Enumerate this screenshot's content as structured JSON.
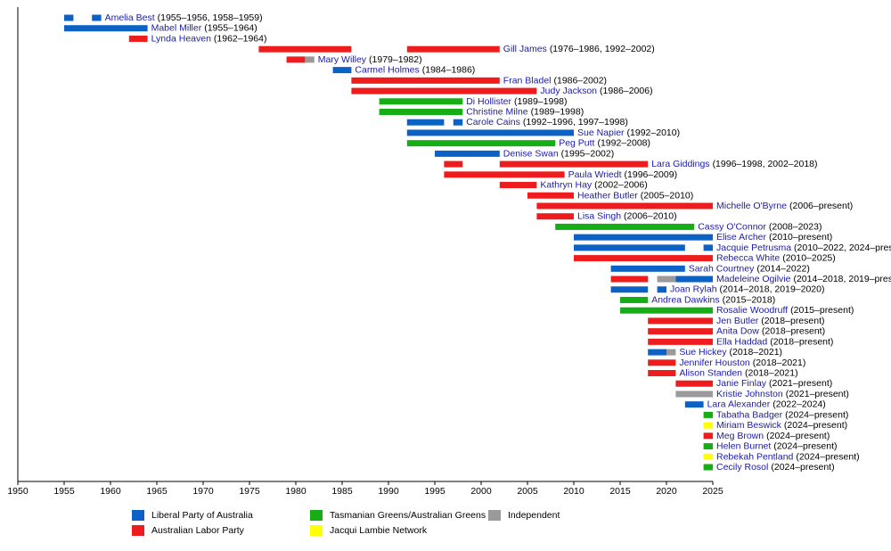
{
  "chart_data": {
    "type": "timeline",
    "xlim": [
      1950,
      2025
    ],
    "xticks": [
      1950,
      1955,
      1960,
      1965,
      1970,
      1975,
      1980,
      1985,
      1990,
      1995,
      2000,
      2005,
      2010,
      2015,
      2020,
      2025
    ],
    "parties": [
      {
        "name": "Liberal Party of Australia",
        "color": "#0b62c4"
      },
      {
        "name": "Australian Labor Party",
        "color": "#ee1c1c"
      },
      {
        "name": "Tasmanian Greens/Australian Greens",
        "color": "#17ad17"
      },
      {
        "name": "Jacqui Lambie Network",
        "color": "#ffff00"
      },
      {
        "name": "Independent",
        "color": "#9a9a9a"
      }
    ],
    "rows": [
      {
        "name": "Amelia Best",
        "span": "(1955–1956, 1958–1959)",
        "segments": [
          {
            "start": 1955,
            "end": 1956,
            "party": 0
          },
          {
            "start": 1958,
            "end": 1959,
            "party": 0
          }
        ]
      },
      {
        "name": "Mabel Miller",
        "span": "(1955–1964)",
        "segments": [
          {
            "start": 1955,
            "end": 1964,
            "party": 0
          }
        ]
      },
      {
        "name": "Lynda Heaven",
        "span": "(1962–1964)",
        "segments": [
          {
            "start": 1962,
            "end": 1964,
            "party": 1
          }
        ]
      },
      {
        "name": "Gill James",
        "span": "(1976–1986, 1992–2002)",
        "segments": [
          {
            "start": 1976,
            "end": 1986,
            "party": 1
          },
          {
            "start": 1992,
            "end": 2002,
            "party": 1
          }
        ]
      },
      {
        "name": "Mary Willey",
        "span": "(1979–1982)",
        "segments": [
          {
            "start": 1979,
            "end": 1981,
            "party": 1
          },
          {
            "start": 1981,
            "end": 1982,
            "party": 4
          }
        ]
      },
      {
        "name": "Carmel Holmes",
        "span": "(1984–1986)",
        "segments": [
          {
            "start": 1984,
            "end": 1986,
            "party": 0
          }
        ]
      },
      {
        "name": "Fran Bladel",
        "span": "(1986–2002)",
        "segments": [
          {
            "start": 1986,
            "end": 2002,
            "party": 1
          }
        ]
      },
      {
        "name": "Judy Jackson",
        "span": "(1986–2006)",
        "segments": [
          {
            "start": 1986,
            "end": 2006,
            "party": 1
          }
        ]
      },
      {
        "name": "Di Hollister",
        "span": "(1989–1998)",
        "segments": [
          {
            "start": 1989,
            "end": 1998,
            "party": 2
          }
        ]
      },
      {
        "name": "Christine Milne",
        "span": "(1989–1998)",
        "segments": [
          {
            "start": 1989,
            "end": 1998,
            "party": 2
          }
        ]
      },
      {
        "name": "Carole Cains",
        "span": "(1992–1996, 1997–1998)",
        "segments": [
          {
            "start": 1992,
            "end": 1996,
            "party": 0
          },
          {
            "start": 1997,
            "end": 1998,
            "party": 0
          }
        ]
      },
      {
        "name": "Sue Napier",
        "span": "(1992–2010)",
        "segments": [
          {
            "start": 1992,
            "end": 2010,
            "party": 0
          }
        ]
      },
      {
        "name": "Peg Putt",
        "span": "(1992–2008)",
        "segments": [
          {
            "start": 1992,
            "end": 2008,
            "party": 2
          }
        ]
      },
      {
        "name": "Denise Swan",
        "span": "(1995–2002)",
        "segments": [
          {
            "start": 1995,
            "end": 2002,
            "party": 0
          }
        ]
      },
      {
        "name": "Lara Giddings",
        "span": "(1996–1998, 2002–2018)",
        "segments": [
          {
            "start": 1996,
            "end": 1998,
            "party": 1
          },
          {
            "start": 2002,
            "end": 2018,
            "party": 1
          }
        ]
      },
      {
        "name": "Paula Wriedt",
        "span": "(1996–2009)",
        "segments": [
          {
            "start": 1996,
            "end": 2009,
            "party": 1
          }
        ]
      },
      {
        "name": "Kathryn Hay",
        "span": "(2002–2006)",
        "segments": [
          {
            "start": 2002,
            "end": 2006,
            "party": 1
          }
        ]
      },
      {
        "name": "Heather Butler",
        "span": "(2005–2010)",
        "segments": [
          {
            "start": 2005,
            "end": 2010,
            "party": 1
          }
        ]
      },
      {
        "name": "Michelle O'Byrne",
        "span": "(2006–present)",
        "segments": [
          {
            "start": 2006,
            "end": 2025,
            "party": 1
          }
        ]
      },
      {
        "name": "Lisa Singh",
        "span": "(2006–2010)",
        "segments": [
          {
            "start": 2006,
            "end": 2010,
            "party": 1
          }
        ]
      },
      {
        "name": "Cassy O'Connor",
        "span": "(2008–2023)",
        "segments": [
          {
            "start": 2008,
            "end": 2023,
            "party": 2
          }
        ]
      },
      {
        "name": "Elise Archer",
        "span": "(2010–present)",
        "segments": [
          {
            "start": 2010,
            "end": 2025,
            "party": 0
          }
        ]
      },
      {
        "name": "Jacquie Petrusma",
        "span": "(2010–2022, 2024–pres",
        "segments": [
          {
            "start": 2010,
            "end": 2022,
            "party": 0
          },
          {
            "start": 2024,
            "end": 2025,
            "party": 0
          }
        ]
      },
      {
        "name": "Rebecca White",
        "span": "(2010–2025)",
        "segments": [
          {
            "start": 2010,
            "end": 2025,
            "party": 1
          }
        ]
      },
      {
        "name": "Sarah Courtney",
        "span": "(2014–2022)",
        "segments": [
          {
            "start": 2014,
            "end": 2022,
            "party": 0
          }
        ]
      },
      {
        "name": "Madeleine Ogilvie",
        "span": "(2014–2018, 2019–pres",
        "segments": [
          {
            "start": 2014,
            "end": 2018,
            "party": 1
          },
          {
            "start": 2019,
            "end": 2021,
            "party": 4
          },
          {
            "start": 2021,
            "end": 2025,
            "party": 0
          }
        ]
      },
      {
        "name": "Joan Rylah",
        "span": "(2014–2018, 2019–2020)",
        "segments": [
          {
            "start": 2014,
            "end": 2018,
            "party": 0
          },
          {
            "start": 2019,
            "end": 2020,
            "party": 0
          }
        ]
      },
      {
        "name": "Andrea Dawkins",
        "span": "(2015–2018)",
        "segments": [
          {
            "start": 2015,
            "end": 2018,
            "party": 2
          }
        ]
      },
      {
        "name": "Rosalie Woodruff",
        "span": "(2015–present)",
        "segments": [
          {
            "start": 2015,
            "end": 2025,
            "party": 2
          }
        ]
      },
      {
        "name": "Jen Butler",
        "span": "(2018–present)",
        "segments": [
          {
            "start": 2018,
            "end": 2025,
            "party": 1
          }
        ]
      },
      {
        "name": "Anita Dow",
        "span": "(2018–present)",
        "segments": [
          {
            "start": 2018,
            "end": 2025,
            "party": 1
          }
        ]
      },
      {
        "name": "Ella Haddad",
        "span": "(2018–present)",
        "segments": [
          {
            "start": 2018,
            "end": 2025,
            "party": 1
          }
        ]
      },
      {
        "name": "Sue Hickey",
        "span": "(2018–2021)",
        "segments": [
          {
            "start": 2018,
            "end": 2020,
            "party": 0
          },
          {
            "start": 2020,
            "end": 2021,
            "party": 4
          }
        ]
      },
      {
        "name": "Jennifer Houston",
        "span": "(2018–2021)",
        "segments": [
          {
            "start": 2018,
            "end": 2021,
            "party": 1
          }
        ]
      },
      {
        "name": "Alison Standen",
        "span": "(2018–2021)",
        "segments": [
          {
            "start": 2018,
            "end": 2021,
            "party": 1
          }
        ]
      },
      {
        "name": "Janie Finlay",
        "span": "(2021–present)",
        "segments": [
          {
            "start": 2021,
            "end": 2025,
            "party": 1
          }
        ]
      },
      {
        "name": "Kristie Johnston",
        "span": "(2021–present)",
        "segments": [
          {
            "start": 2021,
            "end": 2025,
            "party": 4
          }
        ]
      },
      {
        "name": "Lara Alexander",
        "span": "(2022–2024)",
        "segments": [
          {
            "start": 2022,
            "end": 2024,
            "party": 0
          }
        ]
      },
      {
        "name": "Tabatha Badger",
        "span": "(2024–present)",
        "segments": [
          {
            "start": 2024,
            "end": 2025,
            "party": 2
          }
        ]
      },
      {
        "name": "Miriam Beswick",
        "span": "(2024–present)",
        "segments": [
          {
            "start": 2024,
            "end": 2025,
            "party": 3
          }
        ]
      },
      {
        "name": "Meg Brown",
        "span": "(2024–present)",
        "segments": [
          {
            "start": 2024,
            "end": 2025,
            "party": 1
          }
        ]
      },
      {
        "name": "Helen Burnet",
        "span": "(2024–present)",
        "segments": [
          {
            "start": 2024,
            "end": 2025,
            "party": 2
          }
        ]
      },
      {
        "name": "Rebekah Pentland",
        "span": "(2024–present)",
        "segments": [
          {
            "start": 2024,
            "end": 2025,
            "party": 3
          }
        ]
      },
      {
        "name": "Cecily Rosol",
        "span": "(2024–present)",
        "segments": [
          {
            "start": 2024,
            "end": 2025,
            "party": 2
          }
        ]
      }
    ]
  }
}
